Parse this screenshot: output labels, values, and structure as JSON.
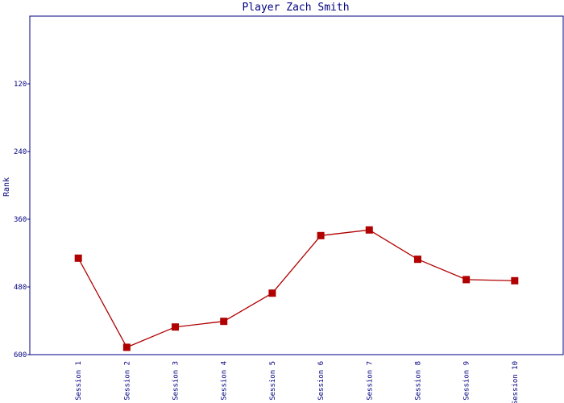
{
  "chart_data": {
    "type": "line",
    "title": "Player Zach Smith",
    "y_label": "Rank",
    "categories": [
      "Session 1",
      "Session 2",
      "Session 3",
      "Session 4",
      "Session 5",
      "Session 6",
      "Session 7",
      "Session 8",
      "Session 9",
      "Session 10"
    ],
    "series": [
      {
        "name": "Rank",
        "color": "#b00000",
        "values": [
          429,
          587,
          551,
          541,
          491,
          389,
          379,
          431,
          467,
          469
        ]
      }
    ],
    "ylim": [
      0,
      600
    ],
    "y_inverted": true,
    "yticks": [
      120,
      240,
      360,
      480,
      600
    ],
    "grid": false
  }
}
